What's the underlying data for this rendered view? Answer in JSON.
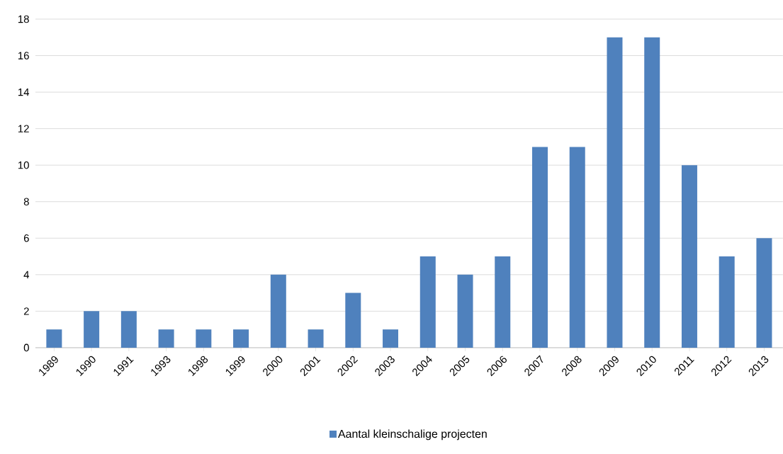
{
  "chart_data": {
    "type": "bar",
    "categories": [
      "1989",
      "1990",
      "1991",
      "1993",
      "1998",
      "1999",
      "2000",
      "2001",
      "2002",
      "2003",
      "2004",
      "2005",
      "2006",
      "2007",
      "2008",
      "2009",
      "2010",
      "2011",
      "2012",
      "2013"
    ],
    "series": [
      {
        "name": "Aantal kleinschalige projecten",
        "color": "#4f81bd",
        "values": [
          1,
          2,
          2,
          1,
          1,
          1,
          4,
          1,
          3,
          1,
          5,
          4,
          5,
          11,
          11,
          17,
          17,
          10,
          5,
          6
        ]
      }
    ],
    "ylim": [
      0,
      18
    ],
    "yticks": [
      0,
      2,
      4,
      6,
      8,
      10,
      12,
      14,
      16,
      18
    ],
    "grid": "y",
    "legend": "bottom"
  }
}
